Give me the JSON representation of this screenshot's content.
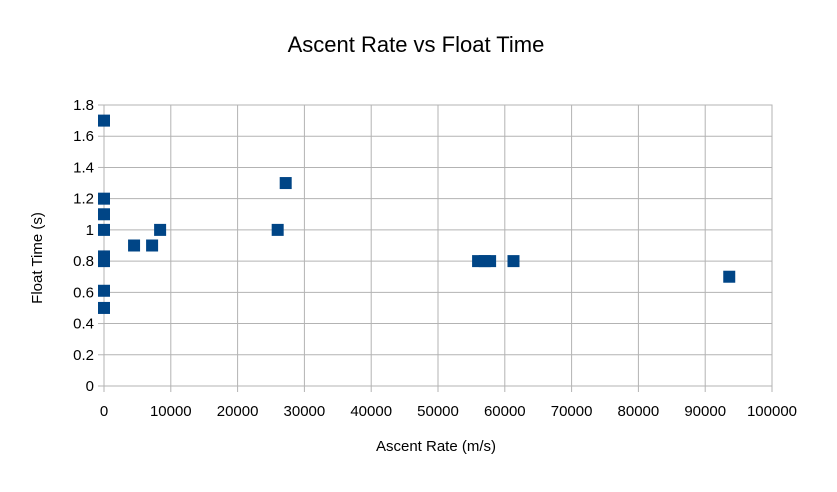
{
  "chart_data": {
    "type": "scatter",
    "title": "Ascent Rate vs Float Time",
    "xlabel": "Ascent Rate (m/s)",
    "ylabel": "Float Time (s)",
    "xlim": [
      0,
      100000
    ],
    "ylim": [
      0,
      1.8
    ],
    "xticks": [
      "0",
      "10000",
      "20000",
      "30000",
      "40000",
      "50000",
      "60000",
      "70000",
      "80000",
      "90000",
      "100000"
    ],
    "yticks": [
      "0",
      "0.2",
      "0.4",
      "0.6",
      "0.8",
      "1",
      "1.2",
      "1.4",
      "1.6",
      "1.8"
    ],
    "grid": true,
    "legend": "none",
    "marker_color": "#004586",
    "series": [
      {
        "points": [
          [
            0,
            1.7
          ],
          [
            0,
            1.2
          ],
          [
            0,
            1.1
          ],
          [
            0,
            1.0
          ],
          [
            0,
            0.83
          ],
          [
            0,
            0.8
          ],
          [
            0,
            0.61
          ],
          [
            0,
            0.5
          ],
          [
            4500,
            0.9
          ],
          [
            7200,
            0.9
          ],
          [
            8400,
            1.0
          ],
          [
            26000,
            1.0
          ],
          [
            27200,
            1.3
          ],
          [
            56000,
            0.8
          ],
          [
            57000,
            0.8
          ],
          [
            57800,
            0.8
          ],
          [
            61300,
            0.8
          ],
          [
            93600,
            0.7
          ]
        ]
      }
    ]
  }
}
